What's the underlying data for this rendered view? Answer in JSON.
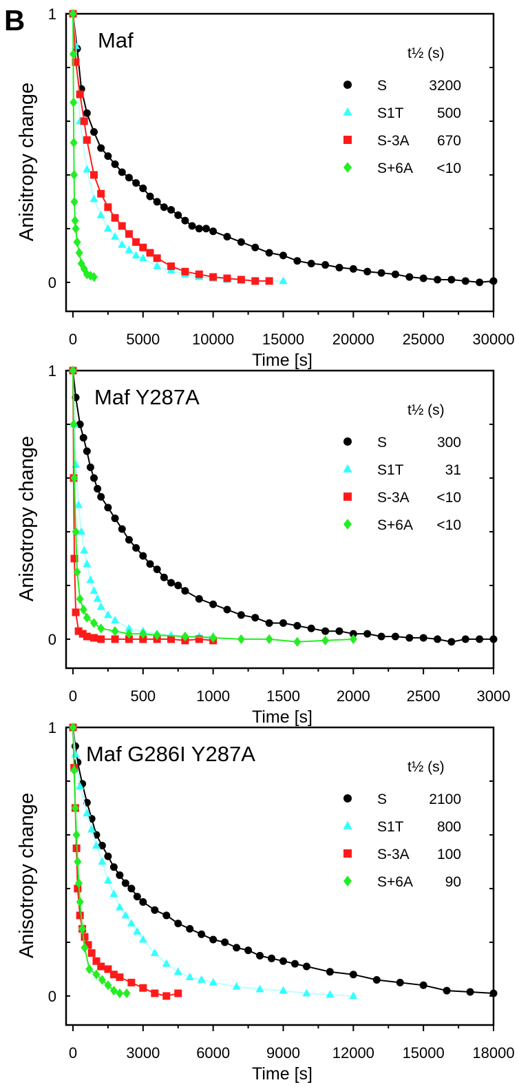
{
  "panel_letter": "B",
  "chart_data": [
    {
      "type": "scatter",
      "title": "Maf",
      "xlabel": "Time [s]",
      "ylabel": "Anisitropy change",
      "xlim": [
        -490,
        30000
      ],
      "ylim": [
        -0.108,
        1
      ],
      "xticks": [
        0,
        5000,
        10000,
        15000,
        20000,
        25000,
        30000
      ],
      "yticks": [
        0,
        1
      ],
      "legend_title": "t½ (s)",
      "legend_position": "top-right",
      "series": [
        {
          "name": "S",
          "half_life": "3200",
          "color": "#000000",
          "marker": "circle",
          "x": [
            0,
            300,
            600,
            1000,
            1500,
            2000,
            2500,
            3000,
            3500,
            4000,
            4500,
            5000,
            5500,
            6000,
            6500,
            7000,
            7500,
            8000,
            8500,
            9000,
            9500,
            10000,
            11000,
            12000,
            13000,
            14000,
            15000,
            16000,
            17000,
            18000,
            19000,
            20000,
            21000,
            22000,
            23000,
            24000,
            25000,
            26000,
            27000,
            28000,
            29000,
            30000
          ],
          "y": [
            1,
            0.87,
            0.72,
            0.63,
            0.56,
            0.5,
            0.47,
            0.44,
            0.41,
            0.39,
            0.37,
            0.35,
            0.32,
            0.3,
            0.28,
            0.27,
            0.25,
            0.23,
            0.21,
            0.2,
            0.2,
            0.19,
            0.17,
            0.15,
            0.13,
            0.11,
            0.1,
            0.08,
            0.07,
            0.065,
            0.055,
            0.05,
            0.04,
            0.035,
            0.03,
            0.02,
            0.015,
            0.01,
            0.01,
            0.005,
            0.0,
            0.005
          ]
        },
        {
          "name": "S1T",
          "half_life": "500",
          "color": "#33ffff",
          "marker": "triangle",
          "x": [
            0,
            200,
            500,
            1000,
            1500,
            2000,
            2500,
            3000,
            3500,
            4000,
            4500,
            5000,
            6000,
            7000,
            8000,
            9000,
            10000,
            11000,
            12000,
            13000,
            14000,
            15000
          ],
          "y": [
            1,
            0.88,
            0.6,
            0.42,
            0.31,
            0.25,
            0.2,
            0.17,
            0.14,
            0.12,
            0.1,
            0.09,
            0.06,
            0.045,
            0.03,
            0.02,
            0.015,
            0.01,
            0.01,
            0.005,
            0.005,
            0.005
          ]
        },
        {
          "name": "S-3A",
          "half_life": "670",
          "color": "#ff1a1a",
          "marker": "square",
          "x": [
            0,
            200,
            500,
            800,
            1000,
            1500,
            2000,
            2500,
            3000,
            3500,
            4000,
            4500,
            5000,
            5500,
            6000,
            7000,
            8000,
            9000,
            10000,
            11000,
            12000,
            13000,
            14000
          ],
          "y": [
            1,
            0.82,
            0.7,
            0.6,
            0.53,
            0.4,
            0.33,
            0.28,
            0.24,
            0.21,
            0.18,
            0.15,
            0.13,
            0.11,
            0.09,
            0.06,
            0.04,
            0.03,
            0.02,
            0.015,
            0.01,
            0.005,
            0.005
          ]
        },
        {
          "name": "S+6A",
          "half_life": "<10",
          "color": "#22ee22",
          "marker": "diamond",
          "x": [
            0,
            20,
            40,
            60,
            80,
            100,
            150,
            200,
            300,
            450,
            600,
            800,
            1000,
            1250,
            1500
          ],
          "y": [
            1,
            0.85,
            0.67,
            0.52,
            0.4,
            0.3,
            0.23,
            0.2,
            0.15,
            0.11,
            0.07,
            0.05,
            0.03,
            0.025,
            0.02
          ]
        }
      ]
    },
    {
      "type": "scatter",
      "title": "Maf Y287A",
      "xlabel": "Time [s]",
      "ylabel": "Anisotropy change",
      "xlim": [
        -49,
        3000
      ],
      "ylim": [
        -0.108,
        1
      ],
      "xticks": [
        0,
        500,
        1000,
        1500,
        2000,
        2500,
        3000
      ],
      "yticks": [
        0,
        1
      ],
      "legend_title": "t½ (s)",
      "legend_position": "top-right",
      "series": [
        {
          "name": "S",
          "half_life": "300",
          "color": "#000000",
          "marker": "circle",
          "x": [
            0,
            20,
            50,
            75,
            100,
            125,
            150,
            175,
            200,
            250,
            300,
            350,
            400,
            450,
            500,
            550,
            600,
            650,
            700,
            750,
            800,
            900,
            1000,
            1100,
            1200,
            1300,
            1400,
            1500,
            1600,
            1700,
            1800,
            1900,
            2000,
            2100,
            2200,
            2300,
            2400,
            2500,
            2600,
            2700,
            2800,
            2900,
            3000
          ],
          "y": [
            1,
            0.9,
            0.8,
            0.75,
            0.7,
            0.64,
            0.6,
            0.56,
            0.53,
            0.49,
            0.45,
            0.41,
            0.37,
            0.34,
            0.31,
            0.28,
            0.26,
            0.23,
            0.21,
            0.2,
            0.18,
            0.15,
            0.13,
            0.11,
            0.09,
            0.08,
            0.06,
            0.06,
            0.05,
            0.04,
            0.03,
            0.03,
            0.02,
            0.02,
            0.01,
            0.01,
            0.005,
            0.005,
            0.0,
            -0.01,
            0.0,
            0.0,
            0.0
          ]
        },
        {
          "name": "S1T",
          "half_life": "31",
          "color": "#33ffff",
          "marker": "triangle",
          "x": [
            0,
            10,
            20,
            40,
            60,
            80,
            100,
            125,
            150,
            175,
            200,
            250,
            300,
            400,
            500,
            600,
            700,
            800,
            900,
            1000
          ],
          "y": [
            1,
            0.8,
            0.65,
            0.5,
            0.4,
            0.33,
            0.28,
            0.22,
            0.18,
            0.15,
            0.12,
            0.09,
            0.07,
            0.04,
            0.03,
            0.02,
            0.015,
            0.01,
            0.01,
            0.01
          ]
        },
        {
          "name": "S-3A",
          "half_life": "<10",
          "color": "#ff1a1a",
          "marker": "square",
          "x": [
            0,
            5,
            10,
            20,
            40,
            70,
            100,
            150,
            200,
            300,
            400,
            500,
            600,
            700,
            800,
            900,
            1000
          ],
          "y": [
            1,
            0.6,
            0.3,
            0.1,
            0.03,
            0.02,
            0.01,
            0.005,
            0.0,
            0.0,
            0.0,
            0.0,
            0.0,
            0.0,
            -0.005,
            0.0,
            -0.005
          ]
        },
        {
          "name": "S+6A",
          "half_life": "<10",
          "color": "#22ee22",
          "marker": "diamond",
          "x": [
            0,
            5,
            10,
            20,
            30,
            50,
            75,
            100,
            150,
            200,
            300,
            400,
            500,
            600,
            800,
            1000,
            1200,
            1400,
            1600,
            1800,
            2000
          ],
          "y": [
            1,
            0.8,
            0.6,
            0.4,
            0.25,
            0.15,
            0.11,
            0.08,
            0.06,
            0.04,
            0.03,
            0.02,
            0.02,
            0.015,
            0.01,
            0.005,
            0.0,
            0.0,
            -0.01,
            -0.005,
            0.0
          ]
        }
      ]
    },
    {
      "type": "scatter",
      "title": "Maf G286I Y287A",
      "xlabel": "Time [s]",
      "ylabel": "Anisotropy change",
      "xlim": [
        -295,
        18000
      ],
      "ylim": [
        -0.108,
        1
      ],
      "xticks": [
        0,
        3000,
        6000,
        9000,
        12000,
        15000,
        18000
      ],
      "yticks": [
        0,
        1
      ],
      "legend_title": "t½ (s)",
      "legend_position": "top-right",
      "series": [
        {
          "name": "S",
          "half_life": "2100",
          "color": "#000000",
          "marker": "circle",
          "x": [
            0,
            100,
            200,
            400,
            600,
            800,
            1000,
            1250,
            1500,
            1750,
            2000,
            2250,
            2500,
            2750,
            3000,
            3500,
            4000,
            4500,
            5000,
            5500,
            6000,
            6500,
            7000,
            7500,
            8000,
            8500,
            9000,
            9500,
            10000,
            11000,
            12000,
            13000,
            14000,
            15000,
            16000,
            17000,
            18000
          ],
          "y": [
            1,
            0.93,
            0.87,
            0.79,
            0.72,
            0.66,
            0.6,
            0.56,
            0.52,
            0.48,
            0.45,
            0.42,
            0.4,
            0.37,
            0.35,
            0.32,
            0.3,
            0.27,
            0.25,
            0.23,
            0.21,
            0.2,
            0.18,
            0.17,
            0.15,
            0.14,
            0.13,
            0.12,
            0.11,
            0.09,
            0.08,
            0.06,
            0.05,
            0.04,
            0.02,
            0.015,
            0.01
          ]
        },
        {
          "name": "S1T",
          "half_life": "800",
          "color": "#33ffff",
          "marker": "triangle",
          "x": [
            0,
            100,
            300,
            600,
            800,
            1000,
            1250,
            1500,
            1750,
            2000,
            2250,
            2500,
            2750,
            3000,
            3500,
            4000,
            4500,
            5000,
            5500,
            6000,
            7000,
            8000,
            9000,
            10000,
            11000,
            12000
          ],
          "y": [
            1,
            0.9,
            0.78,
            0.68,
            0.62,
            0.56,
            0.5,
            0.43,
            0.38,
            0.33,
            0.3,
            0.27,
            0.24,
            0.21,
            0.16,
            0.12,
            0.09,
            0.07,
            0.06,
            0.05,
            0.035,
            0.025,
            0.02,
            0.01,
            0.005,
            0.0
          ]
        },
        {
          "name": "S-3A",
          "half_life": "100",
          "color": "#ff1a1a",
          "marker": "square",
          "x": [
            0,
            50,
            100,
            150,
            200,
            300,
            400,
            500,
            650,
            800,
            1000,
            1200,
            1500,
            1750,
            2000,
            2500,
            3000,
            3500,
            4000,
            4500
          ],
          "y": [
            1,
            0.85,
            0.7,
            0.55,
            0.4,
            0.3,
            0.25,
            0.22,
            0.19,
            0.16,
            0.13,
            0.11,
            0.1,
            0.08,
            0.07,
            0.05,
            0.03,
            0.01,
            0.0,
            0.01
          ]
        },
        {
          "name": "S+6A",
          "half_life": "90",
          "color": "#22ee22",
          "marker": "diamond",
          "x": [
            0,
            50,
            100,
            150,
            200,
            250,
            300,
            400,
            500,
            700,
            1000,
            1250,
            1500,
            1750,
            2000,
            2300
          ],
          "y": [
            1,
            0.84,
            0.7,
            0.6,
            0.5,
            0.42,
            0.35,
            0.25,
            0.18,
            0.1,
            0.08,
            0.06,
            0.04,
            0.02,
            0.01,
            0.01
          ]
        }
      ]
    }
  ]
}
